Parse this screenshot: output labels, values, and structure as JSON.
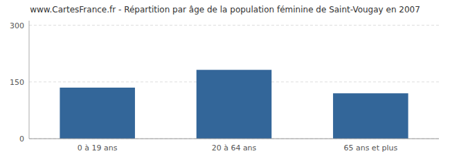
{
  "chart_data": {
    "type": "bar",
    "title": "www.CartesFrance.fr - Répartition par âge de la population féminine de Saint-Vougay en 2007",
    "categories": [
      "0 à 19 ans",
      "20 à 64 ans",
      "65 ans et plus"
    ],
    "values": [
      135,
      182,
      120
    ],
    "color": "#336699",
    "ylim": [
      0,
      312
    ],
    "yticks": [
      0,
      150,
      300
    ],
    "grid": true
  }
}
